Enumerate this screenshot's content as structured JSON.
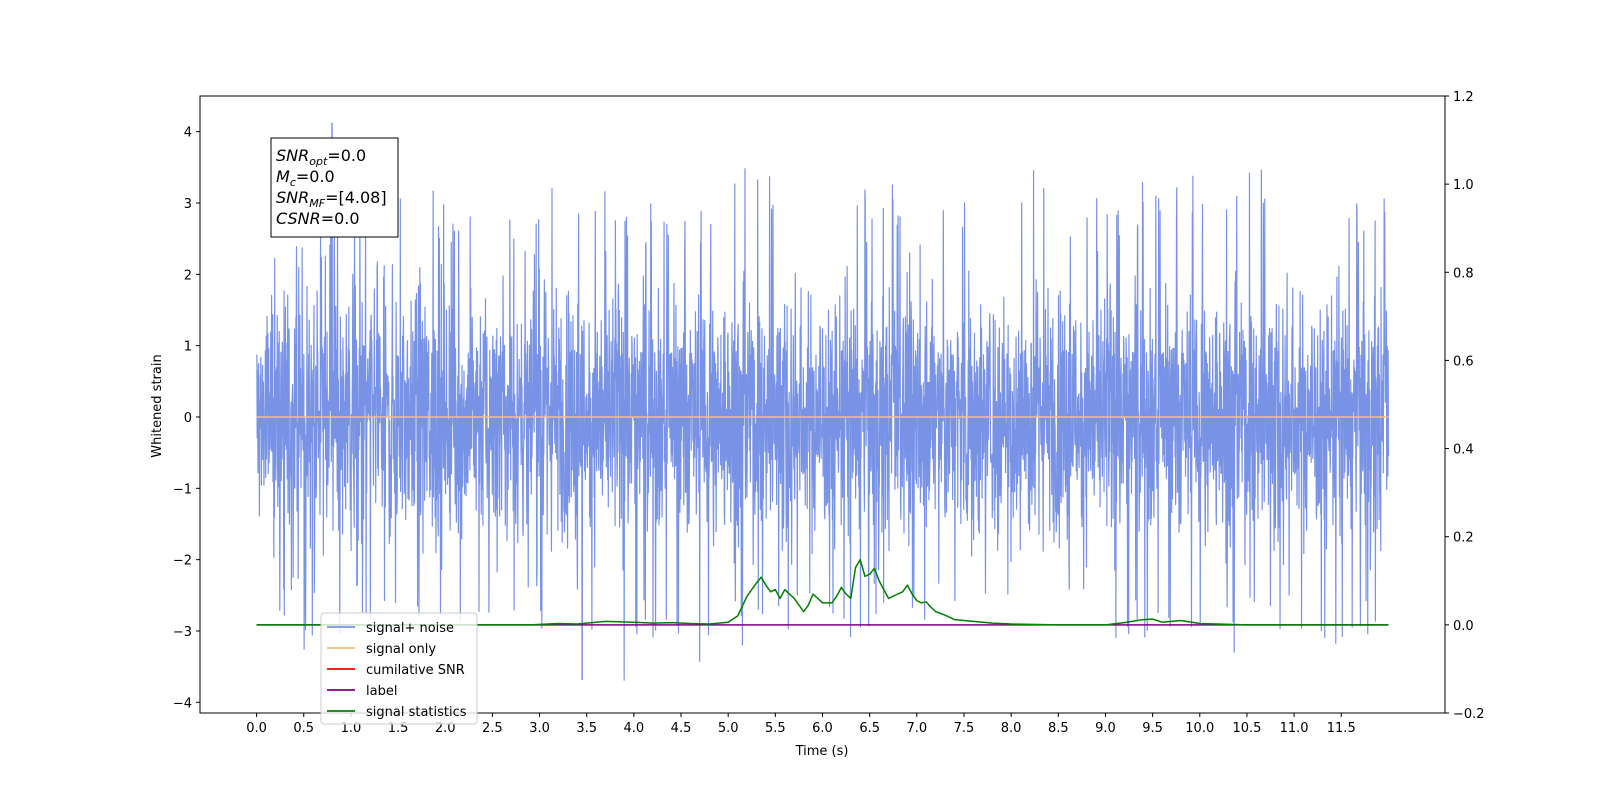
{
  "chart_data": {
    "type": "line",
    "xlabel": "Time (s)",
    "ylabel": "Whitened strain",
    "xlim": [
      -0.6,
      12.6
    ],
    "ylim": [
      -4.15,
      4.5
    ],
    "y2lim": [
      -0.2,
      1.2
    ],
    "x_ticks": [
      "0.0",
      "0.5",
      "1.0",
      "1.5",
      "2.0",
      "2.5",
      "3.0",
      "3.5",
      "4.0",
      "4.5",
      "5.0",
      "5.5",
      "6.0",
      "6.5",
      "7.0",
      "7.5",
      "8.0",
      "8.5",
      "9.0",
      "9.5",
      "10.0",
      "10.5",
      "11.0",
      "11.5"
    ],
    "y_ticks": [
      "4",
      "3",
      "2",
      "1",
      "0",
      "−1",
      "−2",
      "−3",
      "−4"
    ],
    "y2_ticks": [
      "1.2",
      "1.0",
      "0.8",
      "0.6",
      "0.4",
      "0.2",
      "0.0",
      "−0.2"
    ],
    "grid": false,
    "legend_position": "lower-left",
    "info_box": [
      {
        "base": "SNR",
        "sub": "opt",
        "value": "=0.0"
      },
      {
        "base": "M",
        "sub": "c",
        "value": "=0.0"
      },
      {
        "base": "SNR",
        "sub": "MF",
        "value": "=[4.08]"
      },
      {
        "base": "CSNR",
        "sub": "",
        "value": "=0.0"
      }
    ],
    "series": [
      {
        "name": "signal+ noise",
        "color": "#7893e6",
        "axis": "left",
        "x_range": [
          0.0,
          12.0
        ],
        "envelope_upper": [
          2.6,
          2.7,
          3.1,
          3.2,
          2.9,
          2.8,
          3.5,
          3.2,
          3.0,
          2.9,
          3.6,
          3.1,
          3.3,
          3.3,
          2.9,
          3.2,
          3.5,
          3.1,
          3.3,
          3.4,
          3.2,
          3.7,
          3.7,
          3.1
        ],
        "envelope_lower": [
          -2.8,
          -3.3,
          -2.9,
          -3.1,
          -3.2,
          -2.8,
          -3.0,
          -3.7,
          -3.1,
          -3.5,
          -3.2,
          -3.0,
          -3.2,
          -2.9,
          -3.1,
          -3.0,
          -3.5,
          -3.0,
          -3.1,
          -3.0,
          -3.3,
          -3.0,
          -3.6,
          -3.2
        ],
        "peak_max": 4.12,
        "peak_max_x": 0.8,
        "peak_min": -3.68,
        "peak_min_x": 3.45
      },
      {
        "name": "signal only",
        "color": "#f5c078",
        "axis": "left",
        "x": [
          0.0,
          12.0
        ],
        "values": [
          0.0,
          0.0
        ]
      },
      {
        "name": "cumilative SNR",
        "color": "#ff0000",
        "axis": "right",
        "x": [],
        "values": []
      },
      {
        "name": "label",
        "color": "#800080",
        "axis": "right",
        "x": [
          0.0,
          12.0
        ],
        "values": [
          0.0,
          0.0
        ]
      },
      {
        "name": "signal statistics",
        "color": "#008000",
        "axis": "right",
        "x": [
          0.0,
          2.9,
          3.2,
          3.4,
          3.7,
          4.0,
          4.2,
          4.4,
          4.6,
          4.8,
          5.0,
          5.1,
          5.2,
          5.3,
          5.35,
          5.4,
          5.45,
          5.5,
          5.55,
          5.6,
          5.7,
          5.8,
          5.85,
          5.9,
          6.0,
          6.1,
          6.15,
          6.2,
          6.25,
          6.3,
          6.35,
          6.4,
          6.45,
          6.5,
          6.55,
          6.6,
          6.65,
          6.7,
          6.75,
          6.8,
          6.85,
          6.9,
          6.95,
          7.0,
          7.05,
          7.1,
          7.15,
          7.2,
          7.3,
          7.4,
          7.6,
          7.8,
          8.0,
          8.5,
          9.0,
          9.2,
          9.4,
          9.5,
          9.6,
          9.8,
          10.0,
          10.5,
          12.0
        ],
        "values": [
          0.0,
          0.0,
          0.003,
          0.002,
          0.008,
          0.006,
          0.004,
          0.005,
          0.003,
          0.002,
          0.006,
          0.02,
          0.065,
          0.095,
          0.108,
          0.09,
          0.075,
          0.08,
          0.06,
          0.08,
          0.06,
          0.03,
          0.045,
          0.07,
          0.05,
          0.05,
          0.065,
          0.085,
          0.07,
          0.06,
          0.13,
          0.148,
          0.11,
          0.115,
          0.128,
          0.1,
          0.08,
          0.06,
          0.065,
          0.07,
          0.075,
          0.09,
          0.07,
          0.055,
          0.05,
          0.052,
          0.04,
          0.03,
          0.022,
          0.012,
          0.008,
          0.004,
          0.002,
          0.0,
          0.0,
          0.005,
          0.012,
          0.013,
          0.006,
          0.01,
          0.003,
          0.0,
          0.0
        ]
      }
    ]
  }
}
